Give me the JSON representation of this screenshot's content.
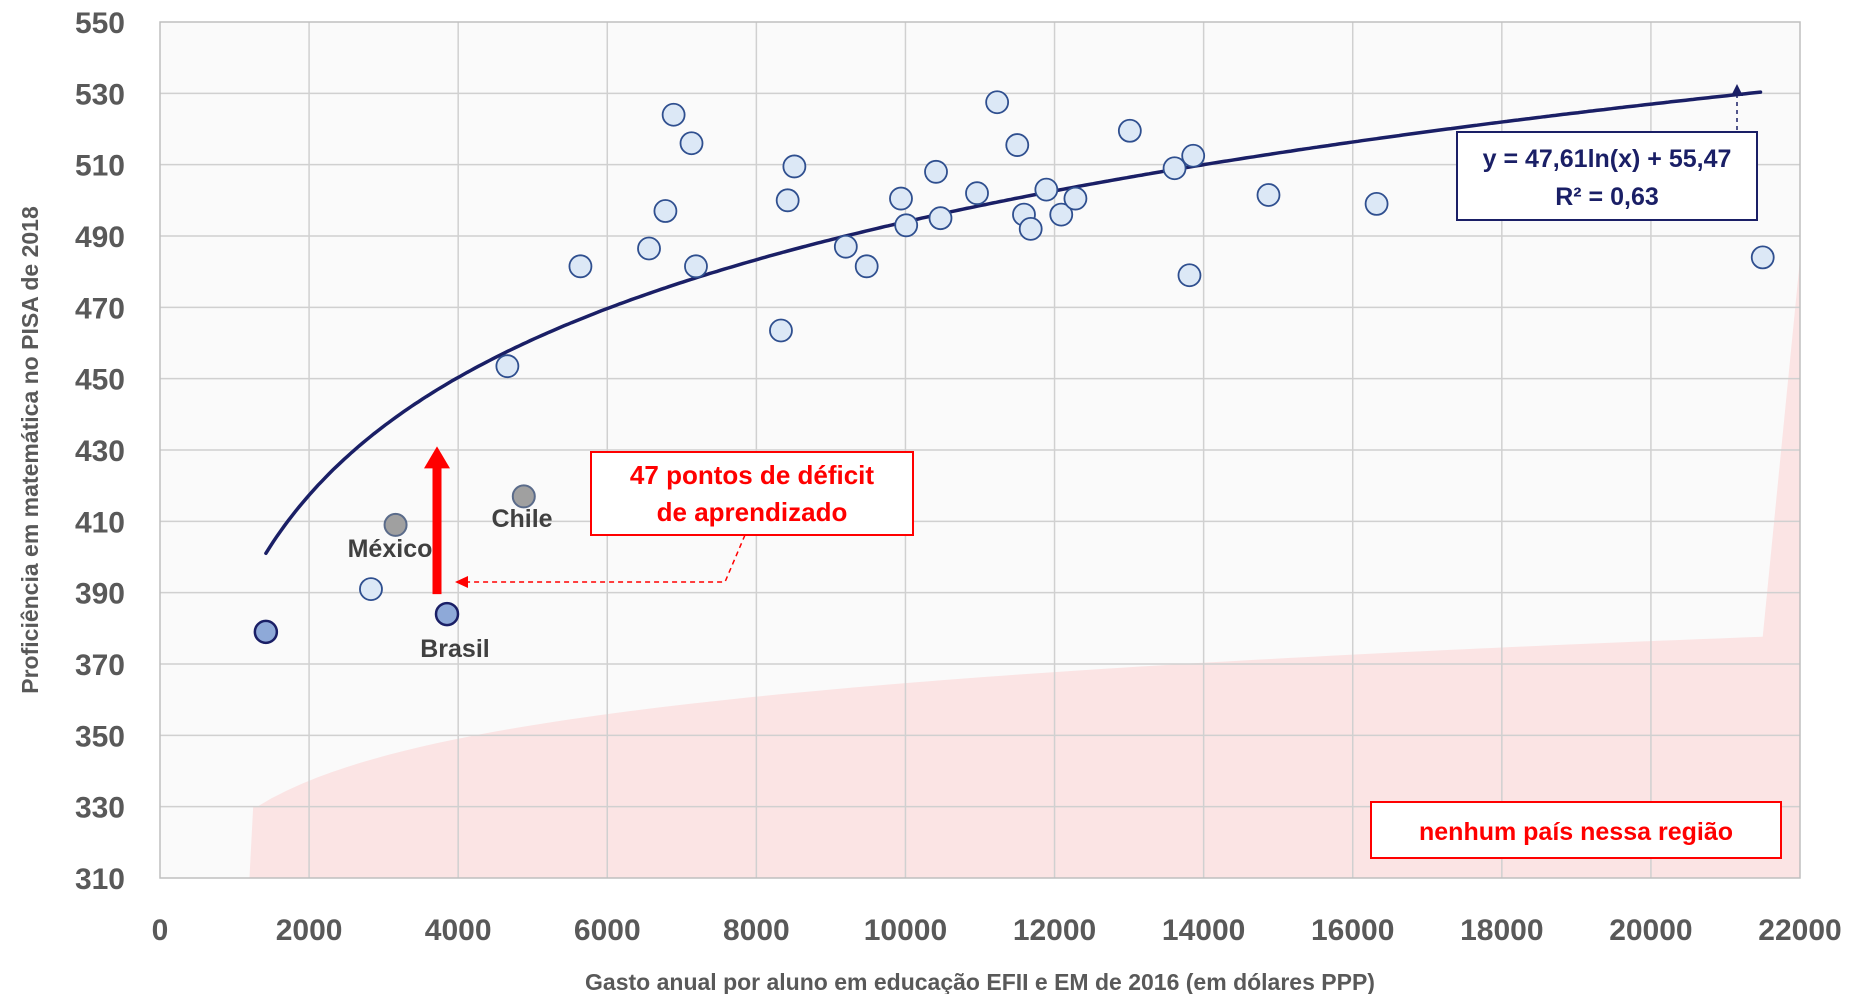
{
  "chart_data": {
    "type": "scatter",
    "xlabel": "Gasto anual por aluno em educação EFII e EM de 2016 (em dólares PPP)",
    "ylabel": "Proficiência em matemática no PISA de 2018",
    "xlim": [
      0,
      22000
    ],
    "ylim": [
      310,
      550
    ],
    "x_ticks": [
      "0",
      "2000",
      "4000",
      "6000",
      "8000",
      "10000",
      "12000",
      "14000",
      "16000",
      "18000",
      "20000",
      "22000"
    ],
    "y_ticks": [
      "310",
      "330",
      "350",
      "370",
      "390",
      "410",
      "430",
      "450",
      "470",
      "490",
      "510",
      "530",
      "550"
    ],
    "grid": true,
    "points": [
      {
        "x": 1420,
        "y": 379,
        "style": "highlight"
      },
      {
        "x": 3850,
        "y": 384,
        "style": "highlight",
        "label": "Brasil"
      },
      {
        "x": 3160,
        "y": 409,
        "style": "gray",
        "label": "México"
      },
      {
        "x": 4880,
        "y": 417,
        "style": "gray",
        "label": "Chile"
      },
      {
        "x": 2830,
        "y": 391
      },
      {
        "x": 4660,
        "y": 453.5
      },
      {
        "x": 5640,
        "y": 481.5
      },
      {
        "x": 6560,
        "y": 486.5
      },
      {
        "x": 6780,
        "y": 497
      },
      {
        "x": 6890,
        "y": 524
      },
      {
        "x": 7130,
        "y": 516
      },
      {
        "x": 7190,
        "y": 481.5
      },
      {
        "x": 8330,
        "y": 463.5
      },
      {
        "x": 8420,
        "y": 500
      },
      {
        "x": 8510,
        "y": 509.5
      },
      {
        "x": 9200,
        "y": 487
      },
      {
        "x": 9480,
        "y": 481.5
      },
      {
        "x": 9940,
        "y": 500.5
      },
      {
        "x": 10010,
        "y": 493
      },
      {
        "x": 10410,
        "y": 508
      },
      {
        "x": 10470,
        "y": 495
      },
      {
        "x": 10960,
        "y": 502
      },
      {
        "x": 11230,
        "y": 527.5
      },
      {
        "x": 11500,
        "y": 515.5
      },
      {
        "x": 11590,
        "y": 496
      },
      {
        "x": 11680,
        "y": 492
      },
      {
        "x": 11890,
        "y": 503
      },
      {
        "x": 12090,
        "y": 496
      },
      {
        "x": 12280,
        "y": 500.5
      },
      {
        "x": 13010,
        "y": 519.5
      },
      {
        "x": 13610,
        "y": 509
      },
      {
        "x": 13810,
        "y": 479
      },
      {
        "x": 13860,
        "y": 512.5
      },
      {
        "x": 14870,
        "y": 501.5
      },
      {
        "x": 16320,
        "y": 499
      },
      {
        "x": 21500,
        "y": 484
      }
    ],
    "trendline": {
      "type": "log",
      "a": 47.61,
      "b": 55.47,
      "x_range": [
        1420,
        21500
      ]
    },
    "shaded_region": {
      "color": "#fbe4e4",
      "label": "nenhum  país nessa região"
    },
    "annotations": {
      "equation_line1": "y = 47,61ln(x) + 55,47",
      "equation_line2": "R² = 0,63",
      "deficit_line1": "47 pontos de déficit",
      "deficit_line2": "de aprendizado",
      "deficit_arrow": {
        "x": 3850,
        "y_from": 384,
        "y_to": 431
      }
    }
  },
  "colors": {
    "trend": "#1a1f66",
    "marker_fill": "#dce8f6",
    "marker_stroke": "#2f4f8f",
    "highlight_fill": "#8ea9d8",
    "gray_fill": "#a0a0a0",
    "red": "#ff0000",
    "grid": "#d0d0d0",
    "plot_bg": "#fafafa"
  }
}
